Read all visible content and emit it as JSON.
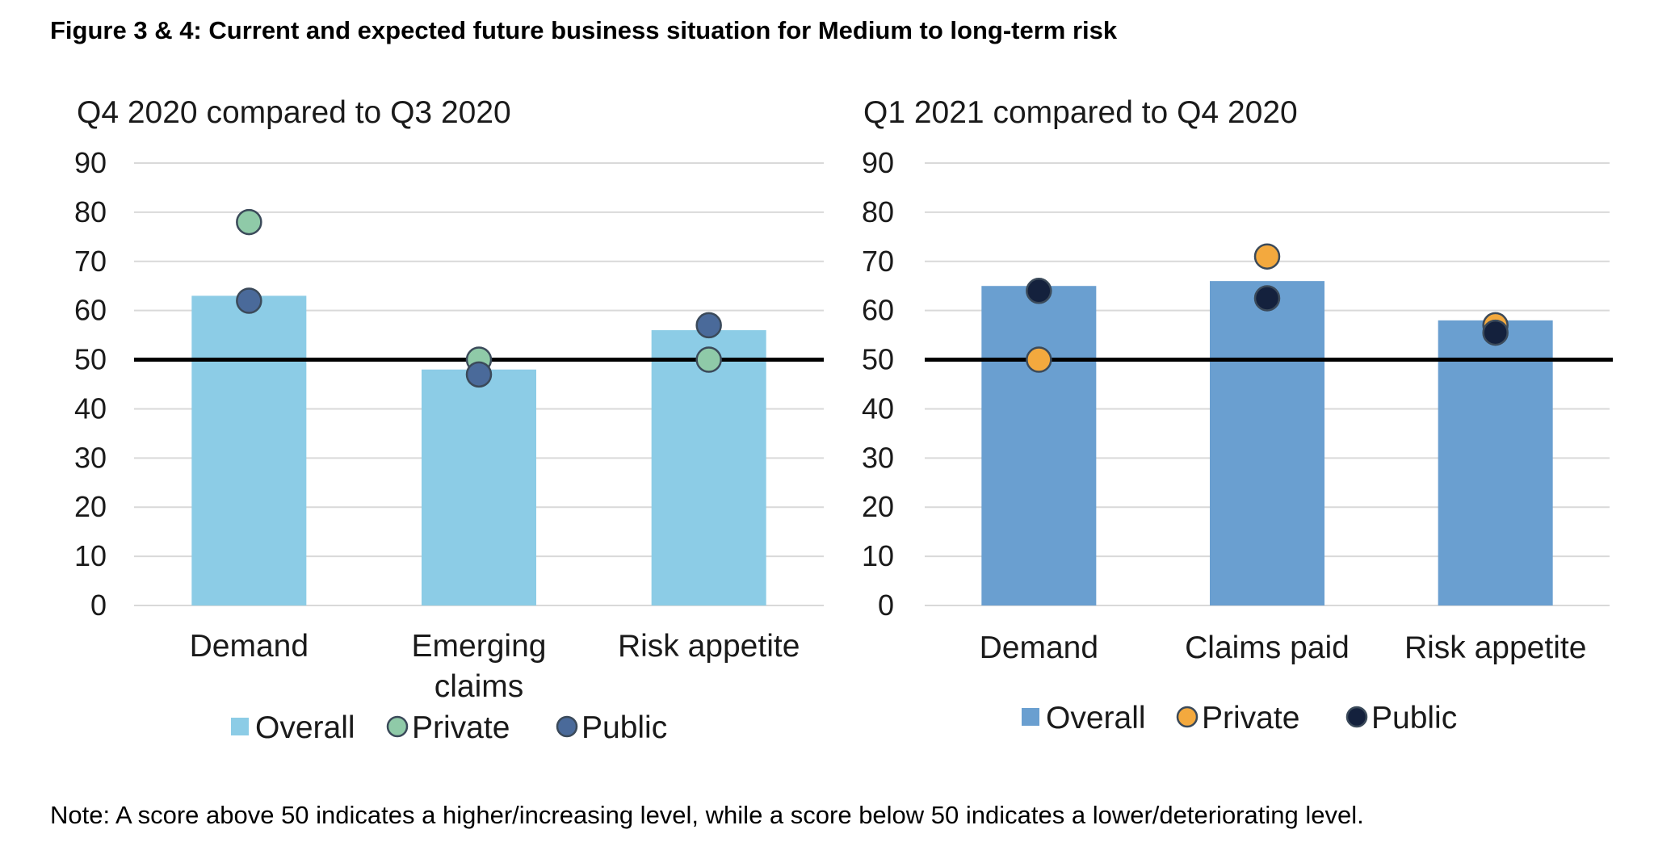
{
  "figure": {
    "title": "Figure 3 & 4: Current and expected future business situation for Medium to long-term risk",
    "note": "Note: A score above 50 indicates a higher/increasing level, while a score below 50 indicates a lower/deteriorating level."
  },
  "colors": {
    "gridline": "#d9d9d9",
    "reference_line": "#000000",
    "left_overall": "#8ccce6",
    "left_private": "#8fcaa8",
    "left_public": "#4a6a9a",
    "right_overall": "#6a9fd0",
    "right_private": "#f3a93e",
    "right_public": "#14213d"
  },
  "chart_data": [
    {
      "type": "bar",
      "title": "Q4 2020 compared to Q3 2020",
      "categories": [
        [
          "Demand"
        ],
        [
          "Emerging",
          "claims"
        ],
        [
          "Risk appetite"
        ]
      ],
      "bar_series": {
        "name": "Overall",
        "values": [
          63,
          48,
          56
        ]
      },
      "point_series": [
        {
          "name": "Private",
          "values": [
            78,
            50,
            50
          ]
        },
        {
          "name": "Public",
          "values": [
            62,
            47,
            57
          ]
        }
      ],
      "ylim": [
        0,
        90
      ],
      "yticks": [
        0,
        10,
        20,
        30,
        40,
        50,
        60,
        70,
        80,
        90
      ],
      "reference_line": 50,
      "grid": true,
      "legend": "bottom",
      "legend_items": [
        "Overall",
        "Private",
        "Public"
      ]
    },
    {
      "type": "bar",
      "title": "Q1 2021 compared to Q4 2020",
      "categories": [
        [
          "Demand"
        ],
        [
          "Claims paid"
        ],
        [
          "Risk appetite"
        ]
      ],
      "bar_series": {
        "name": "Overall",
        "values": [
          65,
          66,
          58
        ]
      },
      "point_series": [
        {
          "name": "Private",
          "values": [
            50,
            71,
            57
          ]
        },
        {
          "name": "Public",
          "values": [
            64,
            62.5,
            55.5
          ]
        }
      ],
      "ylim": [
        0,
        90
      ],
      "yticks": [
        0,
        10,
        20,
        30,
        40,
        50,
        60,
        70,
        80,
        90
      ],
      "reference_line": 50,
      "grid": true,
      "legend": "bottom",
      "legend_items": [
        "Overall",
        "Private",
        "Public"
      ]
    }
  ]
}
